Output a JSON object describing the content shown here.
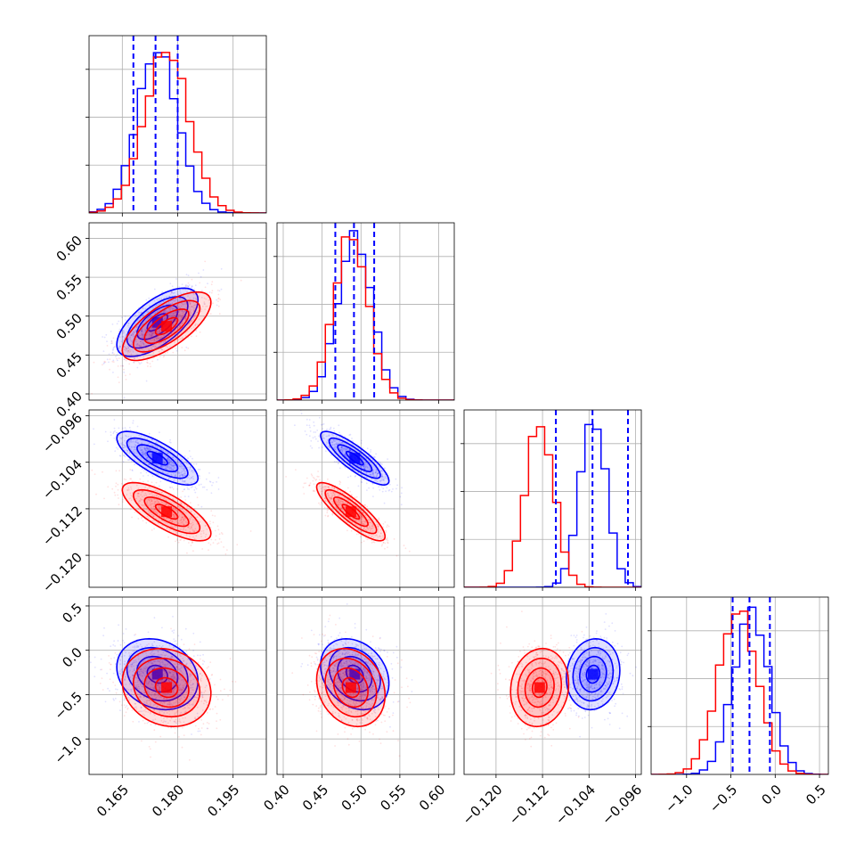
{
  "colors": {
    "blue": "#0000ff",
    "red": "#ff0000",
    "grid": "#b0b0b0",
    "frame": "#000000"
  },
  "chart_data": {
    "type": "corner",
    "dimensions": [
      {
        "range": [
          0.156,
          0.204
        ],
        "ticks": [
          0.165,
          0.18,
          0.195
        ],
        "tick_labels": [
          "0.165",
          "0.180",
          "0.195"
        ]
      },
      {
        "range": [
          0.392,
          0.62
        ],
        "ticks": [
          0.4,
          0.45,
          0.5,
          0.55,
          0.6
        ],
        "tick_labels": [
          "0.40",
          "0.45",
          "0.50",
          "0.55",
          "0.60"
        ]
      },
      {
        "range": [
          -0.1255,
          -0.095
        ],
        "ticks": [
          -0.12,
          -0.112,
          -0.104,
          -0.096
        ],
        "tick_labels": [
          "−0.120",
          "−0.112",
          "−0.104",
          "−0.096"
        ]
      },
      {
        "range": [
          -1.4,
          0.6
        ],
        "ticks": [
          -1.0,
          -0.5,
          0.0,
          0.5
        ],
        "tick_labels": [
          "−1.0",
          "−0.5",
          "0.0",
          "0.5"
        ]
      }
    ],
    "grid": true,
    "series": [
      {
        "color": "#0000ff",
        "mean": [
          0.1745,
          0.492,
          -0.1033,
          -0.27
        ],
        "std": [
          0.0055,
          0.022,
          0.0023,
          0.2
        ],
        "correlation": [
          [
            1,
            0.65,
            -0.75,
            -0.2
          ],
          [
            0.65,
            1,
            -0.85,
            -0.25
          ],
          [
            -0.75,
            -0.85,
            1,
            0.1
          ],
          [
            -0.2,
            -0.25,
            0.1,
            1
          ]
        ],
        "quantiles": [
          [
            0.168,
            0.174,
            0.18
          ],
          [
            0.467,
            0.491,
            0.517
          ],
          [
            -0.1097,
            -0.1034,
            -0.0973
          ],
          [
            -0.48,
            -0.29,
            -0.06
          ]
        ]
      },
      {
        "color": "#ff0000",
        "mean": [
          0.177,
          0.487,
          -0.1125,
          -0.42
        ],
        "std": [
          0.006,
          0.022,
          0.0025,
          0.22
        ],
        "correlation": [
          [
            1,
            0.7,
            -0.75,
            -0.15
          ],
          [
            0.7,
            1,
            -0.85,
            -0.2
          ],
          [
            -0.75,
            -0.85,
            1,
            0.1
          ],
          [
            -0.15,
            -0.2,
            0.1,
            1
          ]
        ]
      }
    ]
  }
}
